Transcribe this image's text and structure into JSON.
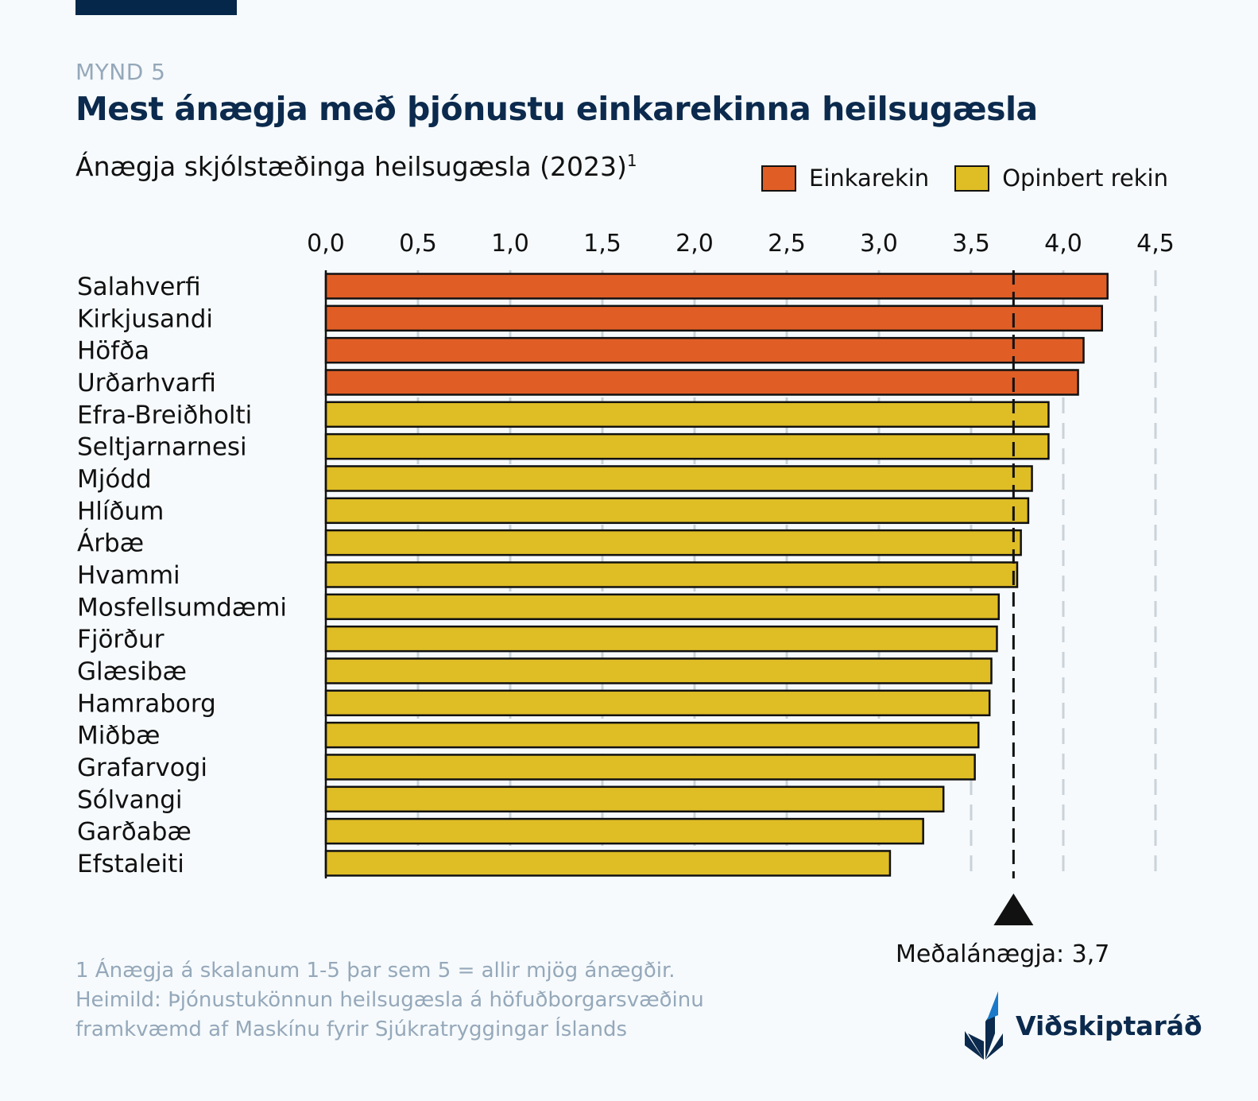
{
  "header": {
    "kicker": "MYND 5",
    "title": "Mest ánægja með þjónustu einkarekinna heilsugæsla",
    "subtitle": "Ánægja skjólstæðinga heilsugæsla (2023)",
    "subtitle_superscript": "1"
  },
  "legend": [
    {
      "label": "Einkarekin",
      "color": "#e05e26"
    },
    {
      "label": "Opinbert rekin",
      "color": "#dfbd25"
    }
  ],
  "chart_data": {
    "type": "bar",
    "orientation": "horizontal",
    "title": "Ánægja skjólstæðinga heilsugæsla (2023)",
    "xlabel": "",
    "ylabel": "",
    "xlim": [
      0,
      4.5
    ],
    "xticks": [
      "0,0",
      "0,5",
      "1,0",
      "1,5",
      "2,0",
      "2,5",
      "3,0",
      "3,5",
      "4,0",
      "4,5"
    ],
    "xtick_values": [
      0,
      0.5,
      1,
      1.5,
      2,
      2.5,
      3,
      3.5,
      4,
      4.5
    ],
    "grid": "vertical dashed",
    "legend_position": "top-right",
    "categories": [
      "Salahverfi",
      "Kirkjusandi",
      "Höfða",
      "Urðarhvarfi",
      "Efra-Breiðholti",
      "Seltjarnarnesi",
      "Mjódd",
      "Hlíðum",
      "Árbæ",
      "Hvammi",
      "Mosfellsumdæmi",
      "Fjörður",
      "Glæsibæ",
      "Hamraborg",
      "Miðbæ",
      "Grafarvogi",
      "Sólvangi",
      "Garðabæ",
      "Efstaleiti"
    ],
    "values": [
      4.24,
      4.21,
      4.11,
      4.08,
      3.92,
      3.92,
      3.83,
      3.81,
      3.77,
      3.75,
      3.65,
      3.64,
      3.61,
      3.6,
      3.54,
      3.52,
      3.35,
      3.24,
      3.06
    ],
    "groups": [
      "Einkarekin",
      "Einkarekin",
      "Einkarekin",
      "Einkarekin",
      "Opinbert rekin",
      "Opinbert rekin",
      "Opinbert rekin",
      "Opinbert rekin",
      "Opinbert rekin",
      "Opinbert rekin",
      "Opinbert rekin",
      "Opinbert rekin",
      "Opinbert rekin",
      "Opinbert rekin",
      "Opinbert rekin",
      "Opinbert rekin",
      "Opinbert rekin",
      "Opinbert rekin",
      "Opinbert rekin"
    ],
    "reference_line": {
      "value": 3.73,
      "label": "Meðalánægja: 3,7"
    }
  },
  "footnote": {
    "line1": "1 Ánægja á skalanum 1-5 þar sem 5 = allir mjög ánægðir.",
    "line2": "Heimild: Þjónustukönnun heilsugæsla á höfuðborgarsvæðinu",
    "line3": "framkvæmd af Maskínu fyrir Sjúkratryggingar Íslands"
  },
  "mean_label": "Meðalánægja: 3,7",
  "logo": {
    "text": "Viðskiptaráð"
  }
}
